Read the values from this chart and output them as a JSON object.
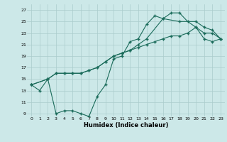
{
  "title": "",
  "xlabel": "Humidex (Indice chaleur)",
  "bg_color": "#cce8e8",
  "grid_color": "#aacccc",
  "line_color": "#1a6b5a",
  "xlim": [
    -0.5,
    23.5
  ],
  "ylim": [
    8.5,
    28
  ],
  "xticks": [
    0,
    1,
    2,
    3,
    4,
    5,
    6,
    7,
    8,
    9,
    10,
    11,
    12,
    13,
    14,
    15,
    16,
    17,
    18,
    19,
    20,
    21,
    22,
    23
  ],
  "yticks": [
    9,
    11,
    13,
    15,
    17,
    19,
    21,
    23,
    25,
    27
  ],
  "line1_x": [
    0,
    1,
    2,
    3,
    4,
    5,
    6,
    7,
    8,
    9,
    10,
    11,
    12,
    13,
    14,
    15,
    16,
    17,
    18,
    19,
    20,
    21,
    22,
    23
  ],
  "line1_y": [
    14,
    13,
    15,
    9,
    9.5,
    9.5,
    9,
    8.5,
    12,
    14,
    18.5,
    19,
    21.5,
    22,
    24.5,
    26,
    25.5,
    26.5,
    26.5,
    25,
    24,
    23,
    23,
    22
  ],
  "line2_x": [
    0,
    2,
    3,
    4,
    5,
    6,
    7,
    8,
    9,
    10,
    11,
    12,
    13,
    14,
    15,
    16,
    17,
    18,
    19,
    20,
    21,
    22,
    23
  ],
  "line2_y": [
    14,
    15,
    16,
    16,
    16,
    16,
    16.5,
    17,
    18,
    19,
    19.5,
    20,
    20.5,
    21,
    21.5,
    22,
    22.5,
    22.5,
    23,
    24,
    22,
    21.5,
    22
  ],
  "line3_x": [
    0,
    2,
    3,
    4,
    5,
    6,
    7,
    8,
    9,
    10,
    11,
    12,
    13,
    14,
    16,
    18,
    20,
    21,
    22,
    23
  ],
  "line3_y": [
    14,
    15,
    16,
    16,
    16,
    16,
    16.5,
    17,
    18,
    19,
    19.5,
    20,
    21,
    22,
    25.5,
    25,
    25,
    24,
    23.5,
    22
  ]
}
